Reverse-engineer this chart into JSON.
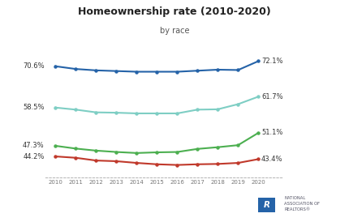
{
  "title": "Homeownership rate (2010-2020)",
  "subtitle": "by race",
  "years": [
    2010,
    2011,
    2012,
    2013,
    2014,
    2015,
    2016,
    2017,
    2018,
    2019,
    2020
  ],
  "white": [
    70.6,
    69.8,
    69.4,
    69.2,
    69.0,
    69.0,
    69.0,
    69.3,
    69.6,
    69.5,
    72.1
  ],
  "black": [
    44.2,
    43.8,
    43.0,
    42.8,
    42.3,
    41.9,
    41.7,
    41.9,
    42.0,
    42.3,
    43.4
  ],
  "asian": [
    58.5,
    57.9,
    57.1,
    57.0,
    56.8,
    56.8,
    56.8,
    57.9,
    58.0,
    59.5,
    61.7
  ],
  "hispanic": [
    47.3,
    46.5,
    45.9,
    45.5,
    45.2,
    45.4,
    45.5,
    46.4,
    46.9,
    47.5,
    51.1
  ],
  "white_color": "#2563A8",
  "black_color": "#C0392B",
  "asian_color": "#7ECEC4",
  "hispanic_color": "#4CAF50",
  "white_label_start": "70.6%",
  "black_label_start": "44.2%",
  "asian_label_start": "58.5%",
  "hispanic_label_start": "47.3%",
  "white_label_end": "72.1%",
  "black_label_end": "43.4%",
  "asian_label_end": "61.7%",
  "hispanic_label_end": "51.1%",
  "bg_color": "#FFFFFF",
  "ylim": [
    38,
    77
  ],
  "xlim": [
    2009.5,
    2021.2
  ]
}
